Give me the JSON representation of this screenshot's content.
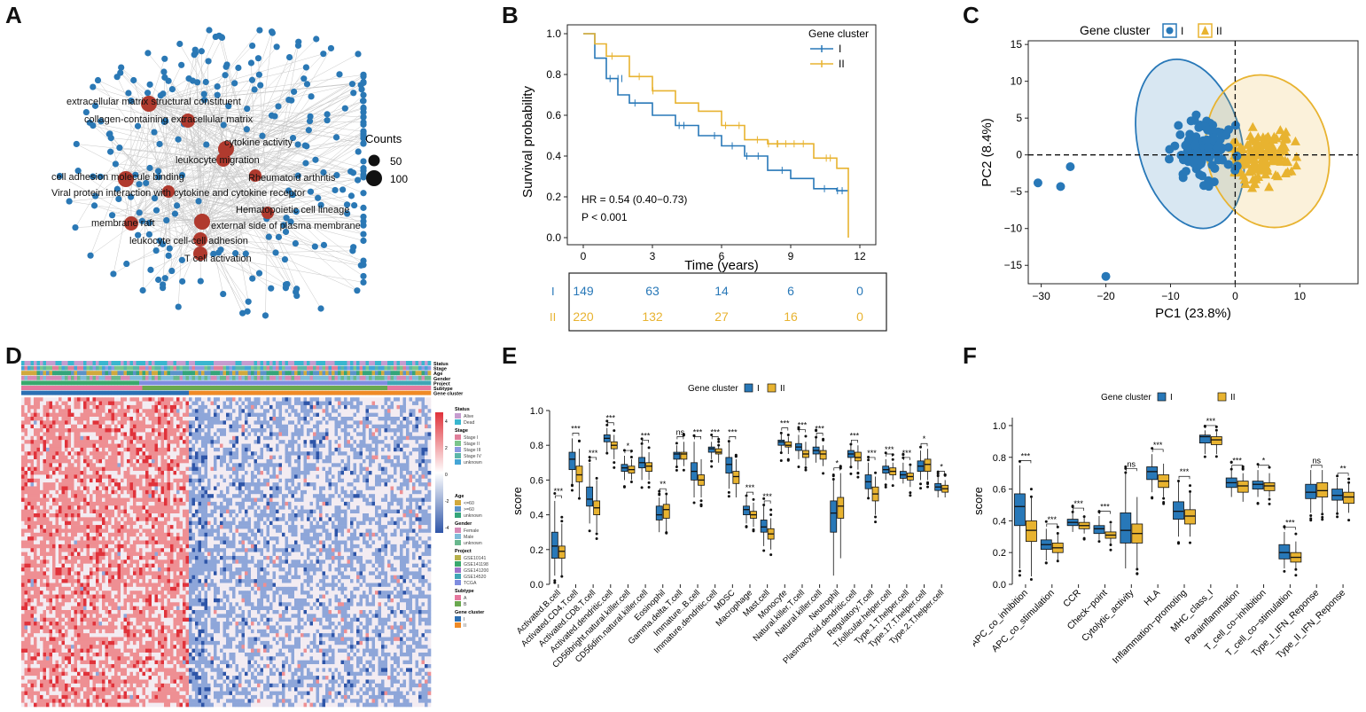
{
  "panels": {
    "A": "A",
    "B": "B",
    "C": "C",
    "D": "D",
    "E": "E",
    "F": "F"
  },
  "colors": {
    "cluster_I": "#2878b8",
    "cluster_II": "#e8b330",
    "node": "#2a78b5",
    "term": "#b03a2e",
    "edge": "#c8c8c8"
  },
  "network": {
    "legend_title": "Counts",
    "legend_sizes": [
      "50",
      "100"
    ],
    "terms": [
      "extracellular matrix structural constituent",
      "collagen-containing extracellular matrix",
      "cytokine activity",
      "leukocyte migration",
      "Rheumatoid arthritis",
      "cell adhesion molecule binding",
      "Viral protein interaction with cytokine and cytokine receptor",
      "Hematopoietic cell lineage",
      "membrane raft",
      "external side of plasma membrane",
      "leukocyte cell-cell adhesion",
      "T cell activation"
    ]
  },
  "km": {
    "legend_title": "Gene cluster",
    "groups": [
      "I",
      "II"
    ],
    "ylabel": "Survival probability",
    "xlabel": "Time (years)",
    "yticks": [
      "0.0",
      "0.2",
      "0.4",
      "0.6",
      "0.8",
      "1.0"
    ],
    "xticks": [
      "0",
      "3",
      "6",
      "9",
      "12"
    ],
    "hr": "HR = 0.54 (0.40−0.73)",
    "p": "P < 0.001",
    "chart_data": {
      "type": "line",
      "x_unit": "years",
      "xlim": [
        0,
        12
      ],
      "ylim": [
        0,
        1
      ],
      "series": [
        {
          "name": "I",
          "points": [
            [
              0,
              1.0
            ],
            [
              0.5,
              0.88
            ],
            [
              1,
              0.78
            ],
            [
              1.5,
              0.7
            ],
            [
              2,
              0.66
            ],
            [
              3,
              0.6
            ],
            [
              4,
              0.55
            ],
            [
              5,
              0.5
            ],
            [
              6,
              0.45
            ],
            [
              7,
              0.4
            ],
            [
              8,
              0.33
            ],
            [
              9,
              0.29
            ],
            [
              10,
              0.24
            ],
            [
              11,
              0.23
            ],
            [
              11.5,
              0.23
            ]
          ]
        },
        {
          "name": "II",
          "points": [
            [
              0,
              1.0
            ],
            [
              0.5,
              0.95
            ],
            [
              1,
              0.89
            ],
            [
              2,
              0.79
            ],
            [
              3,
              0.72
            ],
            [
              4,
              0.66
            ],
            [
              5,
              0.62
            ],
            [
              6,
              0.55
            ],
            [
              7,
              0.48
            ],
            [
              8,
              0.46
            ],
            [
              9,
              0.46
            ],
            [
              10,
              0.39
            ],
            [
              11,
              0.34
            ],
            [
              11.5,
              0.0
            ]
          ]
        }
      ]
    },
    "risk_table": {
      "rows": [
        {
          "group": "I",
          "counts": [
            "149",
            "63",
            "14",
            "6",
            "0"
          ]
        },
        {
          "group": "II",
          "counts": [
            "220",
            "132",
            "27",
            "16",
            "0"
          ]
        }
      ]
    }
  },
  "pca": {
    "legend_title": "Gene cluster",
    "groups": [
      "I",
      "II"
    ],
    "xlabel": "PC1 (23.8%)",
    "ylabel": "PC2 (8.4%)",
    "xticks": [
      "−30",
      "−20",
      "−10",
      "0",
      "10"
    ],
    "yticks": [
      "15",
      "10",
      "5",
      "0",
      "−5",
      "−10",
      "−15"
    ],
    "chart_data": {
      "type": "scatter",
      "xlim": [
        -32,
        19
      ],
      "ylim": [
        -17.5,
        15.5
      ],
      "series": [
        {
          "name": "I",
          "center": [
            -5,
            0.5
          ]
        },
        {
          "name": "II",
          "center": [
            5,
            -0.5
          ]
        }
      ],
      "outliers_I": [
        [
          -30.5,
          -3.8
        ],
        [
          -27,
          -4.3
        ],
        [
          -25.5,
          -1.6
        ],
        [
          -20,
          -16.5
        ]
      ]
    }
  },
  "heatmap": {
    "annotation_rows": [
      "Status",
      "Stage",
      "Age",
      "Gender",
      "Project",
      "Subtype",
      "Gene cluster"
    ],
    "color_bar_ticks": [
      "4",
      "2",
      "0",
      "-2",
      "-4"
    ],
    "legend": [
      {
        "title": "Status",
        "items": [
          {
            "label": "Alive",
            "color": "#c69ccf"
          },
          {
            "label": "Dead",
            "color": "#39b7cf"
          }
        ]
      },
      {
        "title": "Stage",
        "items": [
          {
            "label": "Stage I",
            "color": "#e07f9a"
          },
          {
            "label": "Stage II",
            "color": "#7ac58b"
          },
          {
            "label": "Stage III",
            "color": "#8c9be0"
          },
          {
            "label": "Stage IV",
            "color": "#5bb6a8"
          },
          {
            "label": "unknown",
            "color": "#45a5d6"
          }
        ]
      },
      {
        "title": "Age",
        "items": [
          {
            "label": "<=60",
            "color": "#d1a93c"
          },
          {
            "label": ">=60",
            "color": "#5b93c9"
          },
          {
            "label": "unknown",
            "color": "#34a57a"
          }
        ]
      },
      {
        "title": "Gender",
        "items": [
          {
            "label": "Female",
            "color": "#d68ab6"
          },
          {
            "label": "Male",
            "color": "#7fbcd9"
          },
          {
            "label": "unknown",
            "color": "#69b88e"
          }
        ]
      },
      {
        "title": "Project",
        "items": [
          {
            "label": "GSE10141",
            "color": "#b6b04a"
          },
          {
            "label": "GSE141198",
            "color": "#39a86d"
          },
          {
            "label": "GSE141200",
            "color": "#9d73c9"
          },
          {
            "label": "GSE14520",
            "color": "#3ea6b5"
          },
          {
            "label": "TCGA",
            "color": "#7f8de0"
          }
        ]
      },
      {
        "title": "Subtype",
        "items": [
          {
            "label": "A",
            "color": "#e6789e"
          },
          {
            "label": "B",
            "color": "#6aa84f"
          }
        ]
      },
      {
        "title": "Gene cluster",
        "items": [
          {
            "label": "I",
            "color": "#2c6fb3"
          },
          {
            "label": "II",
            "color": "#ef8a26"
          }
        ]
      }
    ]
  },
  "immune_cells": {
    "legend_title": "Gene cluster",
    "groups": [
      "I",
      "II"
    ],
    "ylabel": "score",
    "yticks": [
      "0.0",
      "0.2",
      "0.4",
      "0.6",
      "0.8",
      "1.0"
    ],
    "chart_data": {
      "type": "box",
      "ylim": [
        0,
        1
      ],
      "categories": [
        "Activated.B.cell",
        "Activated.CD4.T.cell",
        "Activated.CD8.T.cell",
        "Activated.dendritic.cell",
        "CD56bright.natural.killer.cell",
        "CD56dim.natural.killer.cell",
        "Eosinophil",
        "Gamma.delta.T.cell",
        "Immature..B.cell",
        "Immature.dendritic.cell",
        "MDSC",
        "Macrophage",
        "Mast.cell",
        "Monocyte",
        "Natural.killer.T.cell",
        "Natural.killer.cell",
        "Neutrophil",
        "Plasmacytoid.dendritic.cell",
        "Regulatory.T.cell",
        "T.follicular.helper.cell",
        "Type.1.T.helper.cell",
        "Type.17.T.helper.cell",
        "Type.2.T.helper.cell"
      ],
      "significance": [
        "***",
        "***",
        "***",
        "***",
        "*",
        "***",
        "**",
        "ns",
        "***",
        "***",
        "***",
        "***",
        "***",
        "***",
        "***",
        "***",
        "*",
        "***",
        "***",
        "***",
        "***",
        "*",
        "*"
      ],
      "series": [
        {
          "name": "I",
          "boxes": [
            [
              0.05,
              0.15,
              0.22,
              0.3,
              0.48
            ],
            [
              0.58,
              0.66,
              0.72,
              0.76,
              0.84
            ],
            [
              0.35,
              0.45,
              0.49,
              0.56,
              0.7
            ],
            [
              0.76,
              0.82,
              0.84,
              0.86,
              0.9
            ],
            [
              0.6,
              0.65,
              0.67,
              0.69,
              0.74
            ],
            [
              0.6,
              0.67,
              0.7,
              0.73,
              0.8
            ],
            [
              0.3,
              0.37,
              0.4,
              0.45,
              0.5
            ],
            [
              0.68,
              0.72,
              0.75,
              0.76,
              0.8
            ],
            [
              0.5,
              0.6,
              0.65,
              0.7,
              0.82
            ],
            [
              0.72,
              0.76,
              0.78,
              0.79,
              0.82
            ],
            [
              0.55,
              0.64,
              0.69,
              0.73,
              0.82
            ],
            [
              0.35,
              0.4,
              0.43,
              0.45,
              0.5
            ],
            [
              0.22,
              0.3,
              0.33,
              0.37,
              0.45
            ],
            [
              0.76,
              0.8,
              0.82,
              0.83,
              0.87
            ],
            [
              0.72,
              0.77,
              0.79,
              0.81,
              0.86
            ],
            [
              0.7,
              0.75,
              0.77,
              0.79,
              0.84
            ],
            [
              0.05,
              0.3,
              0.41,
              0.48,
              0.6
            ],
            [
              0.68,
              0.73,
              0.75,
              0.77,
              0.8
            ],
            [
              0.5,
              0.55,
              0.59,
              0.63,
              0.7
            ],
            [
              0.6,
              0.64,
              0.66,
              0.68,
              0.72
            ],
            [
              0.58,
              0.61,
              0.63,
              0.65,
              0.7
            ],
            [
              0.6,
              0.65,
              0.68,
              0.71,
              0.77
            ],
            [
              0.5,
              0.54,
              0.56,
              0.58,
              0.62
            ]
          ]
        },
        {
          "name": "II",
          "boxes": [
            [
              0.05,
              0.15,
              0.19,
              0.22,
              0.35
            ],
            [
              0.5,
              0.59,
              0.63,
              0.68,
              0.78
            ],
            [
              0.3,
              0.4,
              0.44,
              0.48,
              0.6
            ],
            [
              0.72,
              0.78,
              0.8,
              0.82,
              0.86
            ],
            [
              0.6,
              0.64,
              0.66,
              0.68,
              0.72
            ],
            [
              0.6,
              0.65,
              0.68,
              0.7,
              0.76
            ],
            [
              0.3,
              0.38,
              0.43,
              0.46,
              0.52
            ],
            [
              0.68,
              0.72,
              0.75,
              0.76,
              0.82
            ],
            [
              0.5,
              0.57,
              0.6,
              0.63,
              0.72
            ],
            [
              0.7,
              0.75,
              0.76,
              0.78,
              0.8
            ],
            [
              0.5,
              0.58,
              0.62,
              0.65,
              0.72
            ],
            [
              0.33,
              0.38,
              0.4,
              0.42,
              0.47
            ],
            [
              0.2,
              0.26,
              0.29,
              0.32,
              0.38
            ],
            [
              0.75,
              0.79,
              0.8,
              0.82,
              0.85
            ],
            [
              0.68,
              0.73,
              0.75,
              0.77,
              0.82
            ],
            [
              0.68,
              0.72,
              0.75,
              0.77,
              0.8
            ],
            [
              0.15,
              0.38,
              0.45,
              0.5,
              0.64
            ],
            [
              0.66,
              0.71,
              0.73,
              0.76,
              0.8
            ],
            [
              0.4,
              0.48,
              0.52,
              0.56,
              0.62
            ],
            [
              0.6,
              0.63,
              0.65,
              0.67,
              0.7
            ],
            [
              0.56,
              0.6,
              0.62,
              0.64,
              0.68
            ],
            [
              0.6,
              0.65,
              0.69,
              0.72,
              0.78
            ],
            [
              0.5,
              0.53,
              0.55,
              0.57,
              0.6
            ]
          ]
        }
      ]
    }
  },
  "immune_functions": {
    "legend_title": "Gene cluster",
    "groups": [
      "I",
      "II"
    ],
    "ylabel": "score",
    "yticks": [
      "0.0",
      "0.2",
      "0.4",
      "0.6",
      "0.8",
      "1.0"
    ],
    "chart_data": {
      "type": "box",
      "ylim": [
        0,
        1.05
      ],
      "categories": [
        "APC_co_inhibition",
        "APC_co_stimulation",
        "CCR",
        "Check−point",
        "Cytolytic_activity",
        "HLA",
        "Inflammation−promoting",
        "MHC_class_I",
        "Parainflammation",
        "T_cell_co−inhibition",
        "T_cell_co−stimulation",
        "Type_I_IFN_Reponse",
        "Type_II_IFN_Reponse"
      ],
      "significance": [
        "***",
        "***",
        "***",
        "***",
        "ns",
        "***",
        "***",
        "***",
        "***",
        "*",
        "***",
        "ns",
        "**"
      ],
      "series": [
        {
          "name": "I",
          "boxes": [
            [
              0.1,
              0.37,
              0.49,
              0.57,
              0.75
            ],
            [
              0.15,
              0.22,
              0.25,
              0.28,
              0.35
            ],
            [
              0.33,
              0.37,
              0.39,
              0.41,
              0.45
            ],
            [
              0.28,
              0.32,
              0.35,
              0.37,
              0.43
            ],
            [
              0.1,
              0.26,
              0.34,
              0.45,
              0.7
            ],
            [
              0.58,
              0.66,
              0.71,
              0.74,
              0.82
            ],
            [
              0.3,
              0.41,
              0.46,
              0.52,
              0.65
            ],
            [
              0.82,
              0.89,
              0.93,
              0.94,
              0.97
            ],
            [
              0.55,
              0.61,
              0.64,
              0.67,
              0.72
            ],
            [
              0.55,
              0.6,
              0.63,
              0.65,
              0.72
            ],
            [
              0.1,
              0.16,
              0.2,
              0.25,
              0.33
            ],
            [
              0.45,
              0.54,
              0.58,
              0.63,
              0.72
            ],
            [
              0.45,
              0.53,
              0.56,
              0.6,
              0.67
            ]
          ]
        },
        {
          "name": "II",
          "boxes": [
            [
              0.05,
              0.27,
              0.34,
              0.4,
              0.55
            ],
            [
              0.15,
              0.2,
              0.23,
              0.26,
              0.32
            ],
            [
              0.32,
              0.35,
              0.37,
              0.39,
              0.42
            ],
            [
              0.25,
              0.29,
              0.31,
              0.33,
              0.38
            ],
            [
              0.1,
              0.26,
              0.32,
              0.38,
              0.55
            ],
            [
              0.55,
              0.61,
              0.65,
              0.69,
              0.76
            ],
            [
              0.3,
              0.38,
              0.43,
              0.47,
              0.58
            ],
            [
              0.82,
              0.88,
              0.91,
              0.93,
              0.96
            ],
            [
              0.52,
              0.58,
              0.62,
              0.65,
              0.7
            ],
            [
              0.55,
              0.59,
              0.62,
              0.64,
              0.7
            ],
            [
              0.1,
              0.14,
              0.17,
              0.2,
              0.27
            ],
            [
              0.45,
              0.55,
              0.59,
              0.64,
              0.72
            ],
            [
              0.45,
              0.51,
              0.55,
              0.58,
              0.64
            ]
          ]
        }
      ]
    }
  }
}
